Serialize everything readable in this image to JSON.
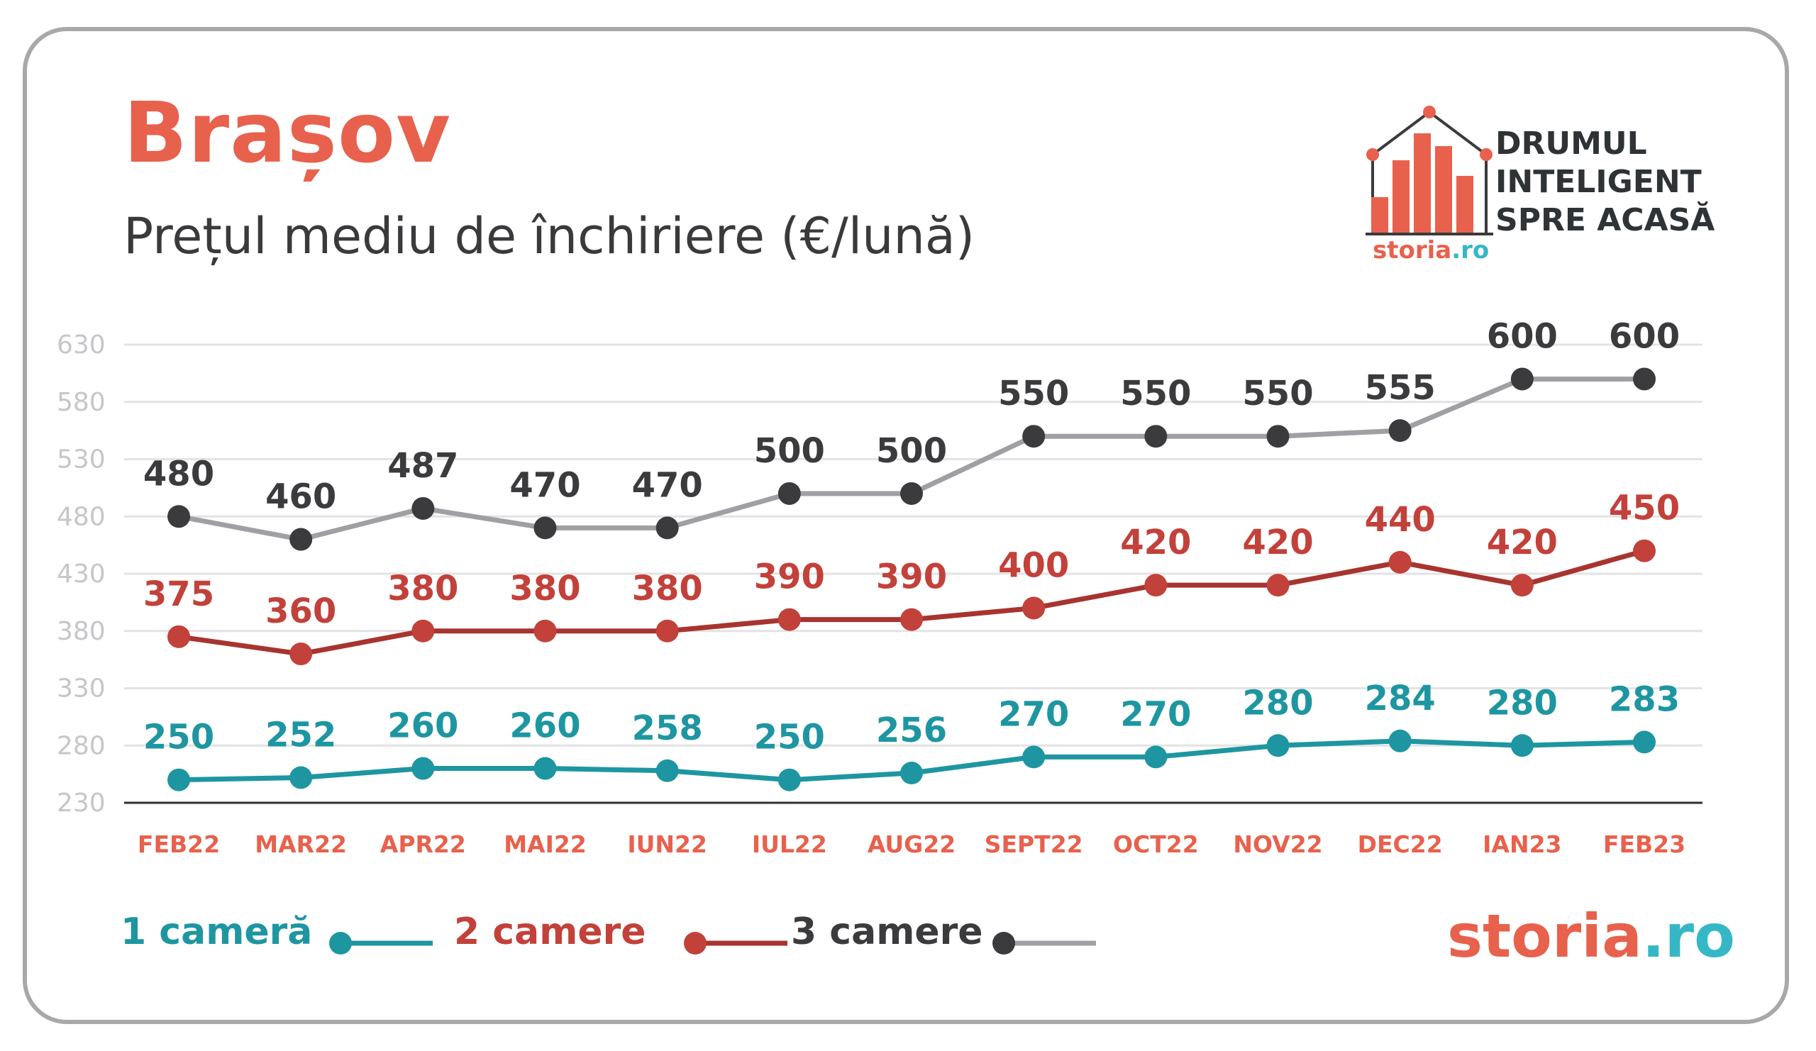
{
  "header": {
    "title": "Brașov",
    "subtitle": "Prețul mediu de închiriere (€/lună)"
  },
  "brand": {
    "tagline": [
      "DRUMUL",
      "INTELIGENT",
      "SPRE ACASĂ"
    ],
    "logo_small_main": "storia",
    "logo_small_tld": ".ro",
    "logo_big_main": "storia",
    "logo_big_tld": ".ro"
  },
  "colors": {
    "accent": "#e8614d",
    "teal": "#1e96a1",
    "red": "#c2413a",
    "dark": "#3b3b3e",
    "grey_line": "#a19fa3",
    "axis_text": "#c7c5c8",
    "grid": "#e3e3e3"
  },
  "chart_data": {
    "type": "line",
    "categories": [
      "FEB22",
      "MAR22",
      "APR22",
      "MAI22",
      "IUN22",
      "IUL22",
      "AUG22",
      "SEPT22",
      "OCT22",
      "NOV22",
      "DEC22",
      "IAN23",
      "FEB23"
    ],
    "yticks": [
      630,
      580,
      530,
      480,
      430,
      380,
      330,
      280,
      230
    ],
    "ylim": [
      230,
      630
    ],
    "grid": true,
    "legend_position": "bottom-left",
    "title": "Brașov",
    "subtitle": "Prețul mediu de închiriere (€/lună)",
    "series": [
      {
        "name": "1 cameră",
        "values": [
          250,
          252,
          260,
          260,
          258,
          250,
          256,
          270,
          270,
          280,
          284,
          280,
          283
        ],
        "color": "#1e96a1",
        "marker": "#1e96a1"
      },
      {
        "name": "2 camere",
        "values": [
          375,
          360,
          380,
          380,
          380,
          390,
          390,
          400,
          420,
          420,
          440,
          420,
          450
        ],
        "color": "#a8342f",
        "marker": "#c2413a"
      },
      {
        "name": "3 camere",
        "values": [
          480,
          460,
          487,
          470,
          470,
          500,
          500,
          550,
          550,
          550,
          555,
          600,
          600
        ],
        "color": "#a19fa3",
        "marker": "#3b3b3e"
      }
    ]
  }
}
